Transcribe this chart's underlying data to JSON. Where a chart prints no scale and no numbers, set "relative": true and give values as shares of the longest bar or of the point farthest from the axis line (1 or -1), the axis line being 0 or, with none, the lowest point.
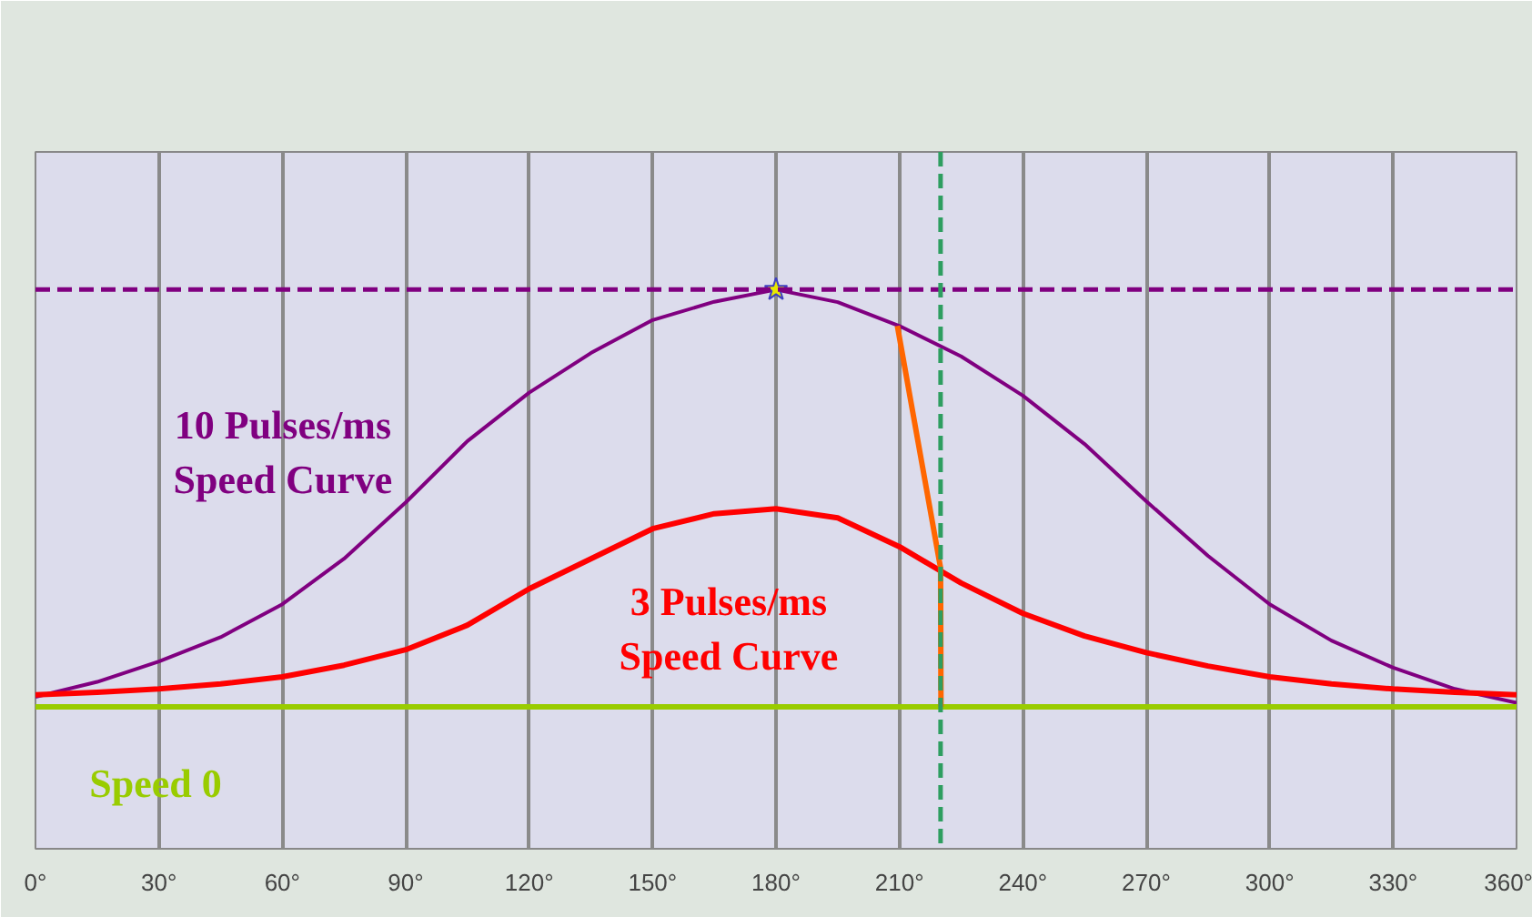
{
  "chart_data": {
    "type": "line",
    "relative": true,
    "x": [
      0,
      15,
      30,
      45,
      60,
      75,
      90,
      105,
      120,
      135,
      150,
      165,
      180,
      195,
      210,
      225,
      240,
      255,
      270,
      285,
      300,
      315,
      330,
      345,
      360
    ],
    "series": [
      {
        "name": "10 Pulses/ms\nSpeed Curve",
        "color": "#800080",
        "values": [
          0.024,
          0.06,
          0.109,
          0.167,
          0.246,
          0.355,
          0.49,
          0.637,
          0.753,
          0.848,
          0.927,
          0.971,
          1.0,
          0.97,
          0.913,
          0.84,
          0.746,
          0.63,
          0.493,
          0.362,
          0.246,
          0.159,
          0.094,
          0.043,
          0.01
        ]
      },
      {
        "name": "3 Pulses/ms\nSpeed Curve",
        "color": "#ff0000",
        "values": [
          0.029,
          0.035,
          0.043,
          0.055,
          0.072,
          0.1,
          0.137,
          0.196,
          0.283,
          0.355,
          0.427,
          0.463,
          0.475,
          0.453,
          0.384,
          0.297,
          0.224,
          0.17,
          0.13,
          0.098,
          0.072,
          0.055,
          0.043,
          0.035,
          0.029
        ]
      },
      {
        "name": "Speed 0",
        "color": "#99cc00",
        "x": [
          0,
          360
        ],
        "values": [
          0,
          0
        ]
      },
      {
        "color": "#ff6600",
        "x": [
          209.5,
          220,
          220.1
        ],
        "values": [
          0.913,
          0.333,
          0
        ]
      },
      {
        "type": "scatter",
        "marker": "star",
        "color": "#e8e800",
        "x": [
          180
        ],
        "values": [
          1.0
        ]
      }
    ],
    "ref_lines": [
      {
        "axis": "y",
        "value": 1.0,
        "color": "#800080",
        "line_style": "dashed"
      },
      {
        "axis": "x",
        "value": 220,
        "color": "#2e9e60",
        "line_style": "dashed"
      }
    ],
    "xlim": [
      0,
      360
    ],
    "xticks": [
      {
        "value": 0,
        "label": "0°"
      },
      {
        "value": 30,
        "label": "30°"
      },
      {
        "value": 60,
        "label": "60°"
      },
      {
        "value": 90,
        "label": "90°"
      },
      {
        "value": 120,
        "label": "120°"
      },
      {
        "value": 150,
        "label": "150°"
      },
      {
        "value": 180,
        "label": "180°"
      },
      {
        "value": 210,
        "label": "210°"
      },
      {
        "value": 240,
        "label": "240°"
      },
      {
        "value": 270,
        "label": "270°"
      },
      {
        "value": 300,
        "label": "300°"
      },
      {
        "value": 330,
        "label": "330°"
      },
      {
        "value": 360,
        "label": "360°"
      }
    ],
    "grid": "x",
    "tick_labels": "x",
    "line_style": "solid"
  }
}
